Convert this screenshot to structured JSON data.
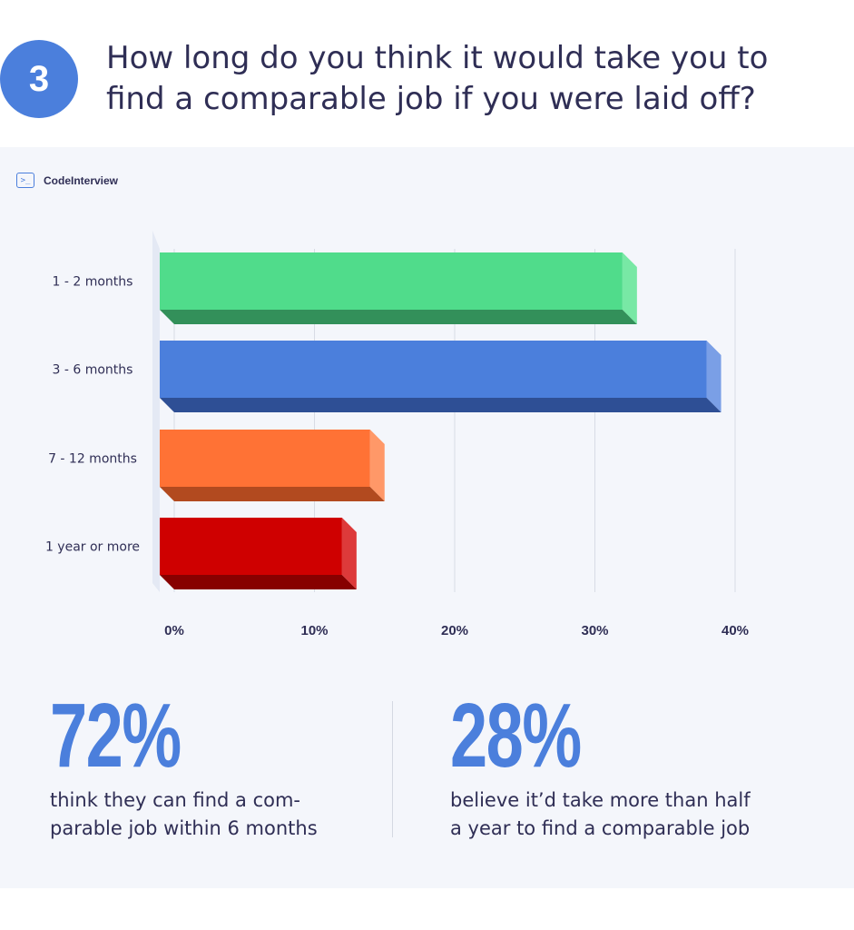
{
  "question": {
    "number": "3",
    "title": "How long do you think it would take you to find a comparable job if you were laid off?"
  },
  "brand": {
    "name": "CodeInterview",
    "icon": "terminal-icon"
  },
  "chart_data": {
    "type": "bar",
    "orientation": "horizontal",
    "categories": [
      "1 - 2 months",
      "3 - 6 months",
      "7 - 12 months",
      "1 year or more"
    ],
    "values": [
      33,
      39,
      15,
      13
    ],
    "unit": "%",
    "xlim": [
      0,
      40
    ],
    "xticks": [
      "0%",
      "10%",
      "20%",
      "30%",
      "40%"
    ],
    "grid": true,
    "colors": [
      {
        "face": "#50dc8b",
        "bottom": "#33905a",
        "side": "#78e8a5"
      },
      {
        "face": "#4b7fdc",
        "bottom": "#2e4f95",
        "side": "#7a9fe6"
      },
      {
        "face": "#ff7235",
        "bottom": "#b24a1f",
        "side": "#ff9868"
      },
      {
        "face": "#cf0000",
        "bottom": "#870000",
        "side": "#dd3a3a"
      }
    ]
  },
  "stats": [
    {
      "value": "72%",
      "text": "think they can find a com-\nparable job within 6 months"
    },
    {
      "value": "28%",
      "text": "believe it’d take more than half\na year to find a comparable job"
    }
  ]
}
